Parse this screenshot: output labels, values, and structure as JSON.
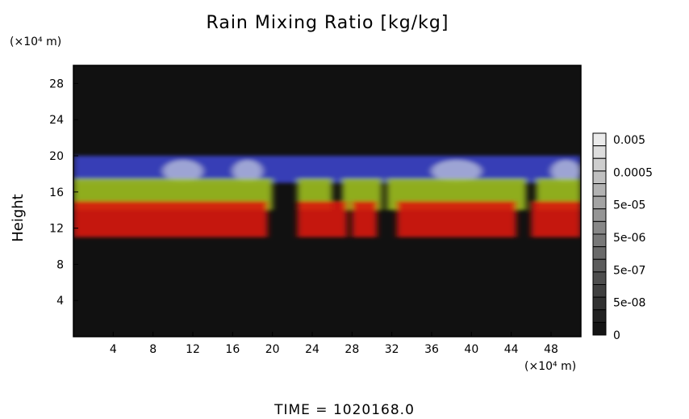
{
  "chart_data": {
    "type": "heatmap",
    "title": "Rain Mixing Ratio [kg/kg]",
    "ylabel": "Height",
    "xlabel": "",
    "x_unit": "(×10⁴ m)",
    "y_unit": "(×10⁴ m)",
    "xlim": [
      0,
      51
    ],
    "ylim": [
      0,
      30
    ],
    "xticks": [
      4,
      8,
      12,
      16,
      20,
      24,
      28,
      32,
      36,
      40,
      44,
      48
    ],
    "yticks": [
      4,
      8,
      12,
      16,
      20,
      24,
      28
    ],
    "colorbar": {
      "labels": [
        "0.005",
        "0.0005",
        "5e-05",
        "5e-06",
        "5e-07",
        "5e-08",
        "0"
      ],
      "levels": 16
    },
    "background": "#111111",
    "layers": [
      {
        "name": "upper",
        "color": "#3a44c8",
        "y": [
          17,
          20
        ],
        "segments": [
          [
            0,
            51
          ]
        ]
      },
      {
        "name": "middle",
        "color": "#9cbe1e",
        "y": [
          14,
          17.5
        ],
        "segments": [
          [
            0,
            20
          ],
          [
            22.5,
            26
          ],
          [
            27,
            31
          ],
          [
            31.5,
            45.5
          ],
          [
            46.5,
            51
          ]
        ]
      },
      {
        "name": "lower",
        "color": "#d81810",
        "y": [
          11,
          15
        ],
        "segments": [
          [
            0,
            19.5
          ],
          [
            22.5,
            27.5
          ],
          [
            28,
            30.5
          ],
          [
            32.5,
            44.5
          ],
          [
            46,
            51
          ]
        ]
      }
    ]
  },
  "footer": {
    "time": "TIME = 1020168.0"
  }
}
